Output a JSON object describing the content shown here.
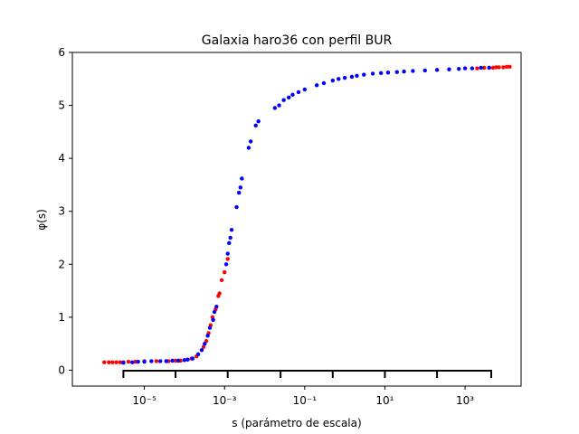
{
  "chart_data": {
    "type": "scatter",
    "title": "Galaxia haro36 con perfil BUR",
    "xlabel": "s (parámetro de escala)",
    "ylabel": "φ(s)",
    "x_scale": "log",
    "xlim": [
      1.6e-07,
      25000.0
    ],
    "ylim": [
      -0.3,
      6.0
    ],
    "x_tick_values": [
      1e-05,
      0.001,
      0.1,
      10.0,
      1000.0
    ],
    "x_tick_labels": [
      "10⁻⁵",
      "10⁻³",
      "10⁻¹",
      "10¹",
      "10³"
    ],
    "y_ticks": [
      0,
      1,
      2,
      3,
      4,
      5,
      6
    ],
    "grid": false,
    "bracket_y": -0.01,
    "bracket_ticks": [
      3e-06,
      6e-05,
      0.0012,
      0.025,
      0.5,
      10.0,
      200.0,
      4500.0
    ],
    "colors": {
      "series_red": "#ff0000",
      "series_blue": "#0000ff",
      "bracket": "#000000"
    },
    "series": [
      {
        "color": "#ff0000",
        "points": [
          [
            1e-06,
            0.15
          ],
          [
            1.3e-06,
            0.15
          ],
          [
            1.6e-06,
            0.15
          ],
          [
            2e-06,
            0.15
          ],
          [
            2.5e-06,
            0.15
          ],
          [
            3e-06,
            0.15
          ],
          [
            4e-06,
            0.16
          ],
          [
            6e-06,
            0.16
          ],
          [
            1e-05,
            0.17
          ],
          [
            2e-05,
            0.17
          ],
          [
            4e-05,
            0.17
          ],
          [
            6e-05,
            0.18
          ],
          [
            8e-05,
            0.18
          ],
          [
            0.00015,
            0.22
          ],
          [
            0.0002,
            0.26
          ],
          [
            0.0003,
            0.44
          ],
          [
            0.00035,
            0.55
          ],
          [
            0.0004,
            0.7
          ],
          [
            0.00045,
            0.85
          ],
          [
            0.0005,
            1.0
          ],
          [
            0.0006,
            1.15
          ],
          [
            0.0007,
            1.4
          ],
          [
            0.00075,
            1.45
          ],
          [
            0.00085,
            1.7
          ],
          [
            0.001,
            1.85
          ],
          [
            0.0012,
            2.1
          ],
          [
            2000.0,
            5.7
          ],
          [
            3000.0,
            5.71
          ],
          [
            4000.0,
            5.71
          ],
          [
            5000.0,
            5.71
          ],
          [
            6000.0,
            5.72
          ],
          [
            7000.0,
            5.72
          ],
          [
            9000.0,
            5.72
          ],
          [
            11000.0,
            5.73
          ],
          [
            13000.0,
            5.73
          ]
        ]
      },
      {
        "color": "#0000ff",
        "points": [
          [
            3e-06,
            0.14
          ],
          [
            5e-06,
            0.15
          ],
          [
            7e-06,
            0.16
          ],
          [
            1e-05,
            0.16
          ],
          [
            1.5e-05,
            0.17
          ],
          [
            2.5e-05,
            0.17
          ],
          [
            3.5e-05,
            0.17
          ],
          [
            5e-05,
            0.18
          ],
          [
            7e-05,
            0.18
          ],
          [
            0.0001,
            0.19
          ],
          [
            0.00012,
            0.2
          ],
          [
            0.00016,
            0.22
          ],
          [
            0.00022,
            0.3
          ],
          [
            0.00027,
            0.38
          ],
          [
            0.00032,
            0.5
          ],
          [
            0.00038,
            0.65
          ],
          [
            0.00043,
            0.8
          ],
          [
            0.00052,
            0.95
          ],
          [
            0.00056,
            1.1
          ],
          [
            0.00063,
            1.2
          ],
          [
            0.0011,
            2.0
          ],
          [
            0.0012,
            2.2
          ],
          [
            0.0013,
            2.4
          ],
          [
            0.0014,
            2.5
          ],
          [
            0.0015,
            2.65
          ],
          [
            0.002,
            3.08
          ],
          [
            0.0023,
            3.35
          ],
          [
            0.0025,
            3.45
          ],
          [
            0.0027,
            3.62
          ],
          [
            0.004,
            4.2
          ],
          [
            0.0045,
            4.32
          ],
          [
            0.006,
            4.62
          ],
          [
            0.007,
            4.7
          ],
          [
            0.018,
            4.95
          ],
          [
            0.023,
            5.0
          ],
          [
            0.03,
            5.1
          ],
          [
            0.04,
            5.15
          ],
          [
            0.05,
            5.2
          ],
          [
            0.07,
            5.25
          ],
          [
            0.1,
            5.3
          ],
          [
            0.2,
            5.38
          ],
          [
            0.3,
            5.42
          ],
          [
            0.5,
            5.47
          ],
          [
            0.7,
            5.5
          ],
          [
            1,
            5.52
          ],
          [
            1.5,
            5.54
          ],
          [
            2,
            5.56
          ],
          [
            3,
            5.58
          ],
          [
            5,
            5.6
          ],
          [
            8,
            5.61
          ],
          [
            12.0,
            5.62
          ],
          [
            20.0,
            5.63
          ],
          [
            30.0,
            5.64
          ],
          [
            50.0,
            5.65
          ],
          [
            100.0,
            5.66
          ],
          [
            200.0,
            5.67
          ],
          [
            400.0,
            5.68
          ],
          [
            700.0,
            5.69
          ],
          [
            1000.0,
            5.7
          ],
          [
            1500.0,
            5.7
          ],
          [
            2500.0,
            5.71
          ],
          [
            4000.0,
            5.71
          ]
        ]
      }
    ]
  }
}
